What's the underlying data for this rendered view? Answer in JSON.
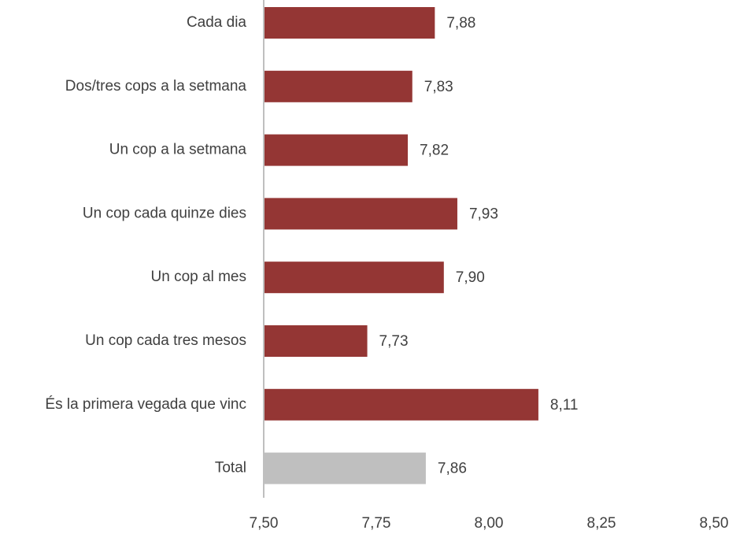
{
  "chart_data": {
    "type": "barh",
    "categories": [
      "Cada dia",
      "Dos/tres cops a la setmana",
      "Un cop a la setmana",
      "Un cop cada quinze dies",
      "Un cop al mes",
      "Un cop cada tres mesos",
      "És la primera vegada que vinc",
      "Total"
    ],
    "values": [
      7.88,
      7.83,
      7.82,
      7.93,
      7.9,
      7.73,
      8.11,
      7.86
    ],
    "value_labels": [
      "7,88",
      "7,83",
      "7,82",
      "7,93",
      "7,90",
      "7,73",
      "8,11",
      "7,86"
    ],
    "colors": [
      "#943634",
      "#943634",
      "#943634",
      "#943634",
      "#943634",
      "#943634",
      "#943634",
      "#bfbfbf"
    ],
    "xlim": [
      7.5,
      8.5
    ],
    "xticks": [
      {
        "value": 7.5,
        "label": "7,50"
      },
      {
        "value": 7.75,
        "label": "7,75"
      },
      {
        "value": 8.0,
        "label": "8,00"
      },
      {
        "value": 8.25,
        "label": "8,25"
      },
      {
        "value": 8.5,
        "label": "8,50"
      }
    ],
    "grid": false
  }
}
